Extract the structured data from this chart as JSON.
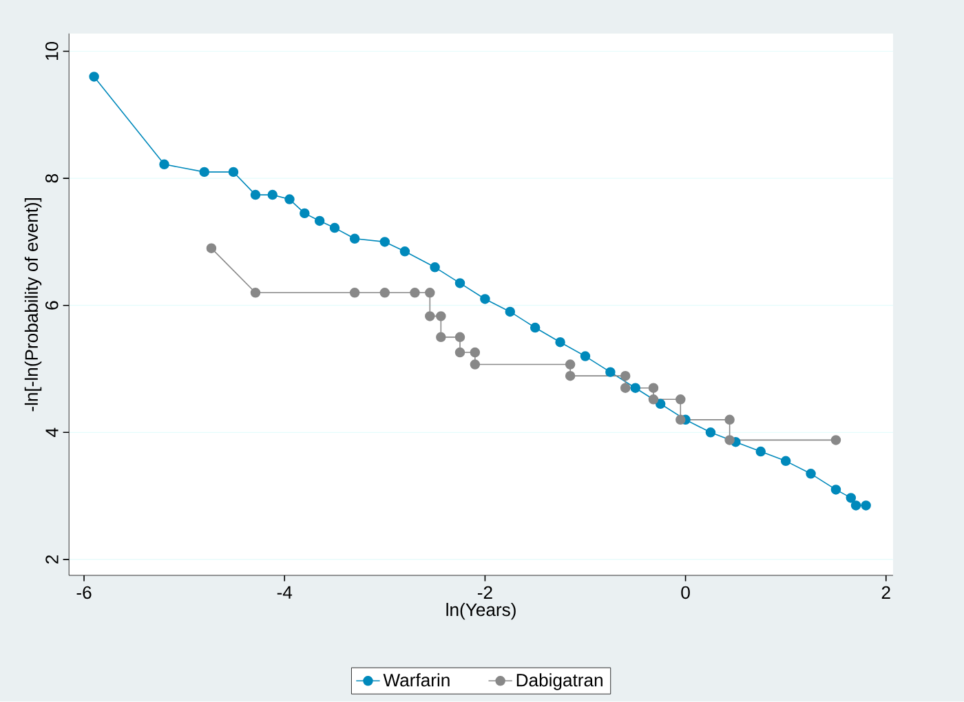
{
  "chart_data": {
    "type": "line",
    "xlabel": "ln(Years)",
    "ylabel": "-ln[-ln(Probability of event)]",
    "xlim": [
      -6.15,
      2.07
    ],
    "ylim": [
      1.75,
      10.28
    ],
    "xticks": [
      -6,
      -4,
      -2,
      0,
      2
    ],
    "yticks": [
      2,
      4,
      6,
      8,
      10
    ],
    "grid": "y",
    "legend": "bottom",
    "marker": "circle",
    "line_style": "solid",
    "series": [
      {
        "name": "Warfarin",
        "color": "#0089bb",
        "x": [
          -5.9,
          -5.2,
          -4.8,
          -4.51,
          -4.29,
          -4.12,
          -3.95,
          -3.8,
          -3.65,
          -3.5,
          -3.3,
          -3.0,
          -2.8,
          -2.5,
          -2.25,
          -2.0,
          -1.75,
          -1.5,
          -1.25,
          -1.0,
          -0.75,
          -0.5,
          -0.25,
          0.0,
          0.25,
          0.5,
          0.75,
          1.0,
          1.25,
          1.5,
          1.65,
          1.7,
          1.8
        ],
        "values": [
          9.6,
          8.22,
          8.1,
          8.1,
          7.74,
          7.74,
          7.67,
          7.45,
          7.33,
          7.22,
          7.05,
          7.0,
          6.85,
          6.6,
          6.35,
          6.1,
          5.9,
          5.65,
          5.42,
          5.2,
          4.95,
          4.7,
          4.45,
          4.2,
          4.0,
          3.85,
          3.7,
          3.55,
          3.35,
          3.1,
          2.97,
          2.85,
          2.85
        ]
      },
      {
        "name": "Dabigatran",
        "color": "#888888",
        "x": [
          -4.73,
          -4.29,
          -3.3,
          -3.0,
          -2.7,
          -2.55,
          -2.55,
          -2.44,
          -2.44,
          -2.25,
          -2.25,
          -2.1,
          -2.1,
          -1.15,
          -1.15,
          -0.6,
          -0.6,
          -0.32,
          -0.32,
          -0.05,
          -0.05,
          0.44,
          0.44,
          1.5
        ],
        "values": [
          6.9,
          6.2,
          6.2,
          6.2,
          6.2,
          6.2,
          5.83,
          5.83,
          5.5,
          5.5,
          5.26,
          5.26,
          5.07,
          5.07,
          4.89,
          4.89,
          4.7,
          4.7,
          4.52,
          4.52,
          4.2,
          4.2,
          3.88,
          3.88
        ]
      }
    ]
  }
}
